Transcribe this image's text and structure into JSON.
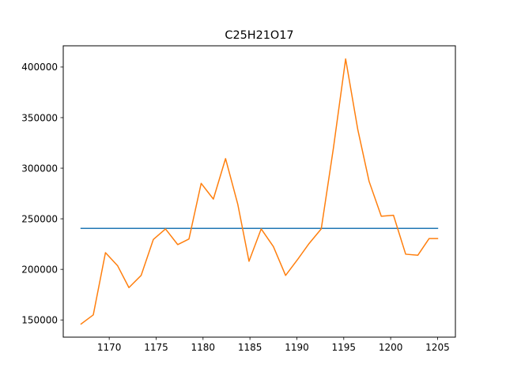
{
  "chart_data": {
    "type": "line",
    "title": "C25H21O17",
    "xlabel": "",
    "ylabel": "",
    "xlim": [
      1165.1,
      1206.9
    ],
    "ylim": [
      133000,
      421000
    ],
    "xticks": [
      1170,
      1175,
      1180,
      1185,
      1190,
      1195,
      1200,
      1205
    ],
    "yticks": [
      150000,
      200000,
      250000,
      300000,
      350000,
      400000
    ],
    "grid": false,
    "legend": false,
    "series": [
      {
        "color": "#1f77b4",
        "x": [
          1167.0,
          1205.0
        ],
        "y": [
          240500,
          240500
        ]
      },
      {
        "color": "#ff7f0e",
        "x": [
          1167.0,
          1168.3,
          1169.6,
          1170.9,
          1172.1,
          1173.4,
          1174.7,
          1176.0,
          1177.3,
          1178.5,
          1179.8,
          1181.1,
          1182.4,
          1183.7,
          1184.9,
          1186.2,
          1187.5,
          1188.8,
          1190.1,
          1191.3,
          1192.6,
          1193.9,
          1195.2,
          1196.5,
          1197.7,
          1199.0,
          1200.3,
          1201.6,
          1202.9,
          1204.1,
          1205.0
        ],
        "y": [
          146000,
          155000,
          216500,
          203500,
          182000,
          194000,
          229500,
          240000,
          224500,
          230000,
          285000,
          269500,
          309500,
          264500,
          208000,
          240000,
          222500,
          194000,
          210000,
          225500,
          240000,
          320000,
          408000,
          338000,
          287000,
          252500,
          253500,
          215000,
          214000,
          230500,
          230500
        ]
      }
    ]
  }
}
